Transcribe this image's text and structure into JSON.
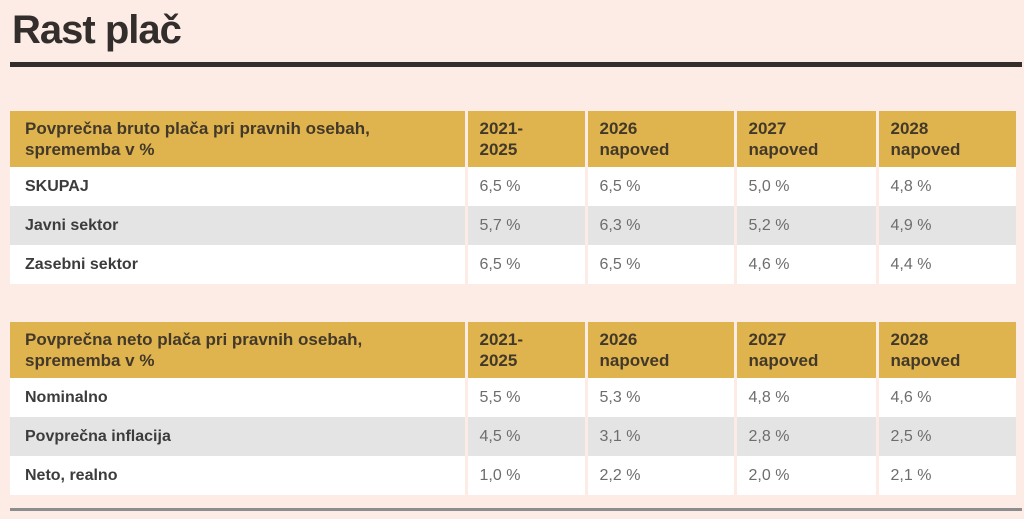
{
  "page": {
    "title": "Rast plač",
    "background_color": "#fcece5",
    "accent_gold": "#dfb44e",
    "row_stripe_gray": "#e4e4e4",
    "title_color": "#332e2c",
    "value_text_color": "#6d6d6d",
    "label_text_color": "#3c3c3c",
    "bottom_rule_color": "#8d8d8d"
  },
  "tables": [
    {
      "title": "Povprečna bruto plača pri pravnih osebah, sprememba v %",
      "columns": [
        "2021-\n2025",
        "2026\nnapoved",
        "2027\nnapoved",
        "2028\nnapoved"
      ],
      "rows": [
        {
          "label": "SKUPAJ",
          "values": [
            "6,5 %",
            "6,5 %",
            "5,0 %",
            "4,8 %"
          ]
        },
        {
          "label": "Javni sektor",
          "values": [
            "5,7 %",
            "6,3 %",
            "5,2 %",
            "4,9 %"
          ]
        },
        {
          "label": "Zasebni sektor",
          "values": [
            "6,5 %",
            "6,5 %",
            "4,6 %",
            "4,4 %"
          ]
        }
      ]
    },
    {
      "title": "Povprečna neto plača pri pravnih osebah, sprememba v %",
      "columns": [
        "2021-\n2025",
        "2026\nnapoved",
        "2027\nnapoved",
        "2028\nnapoved"
      ],
      "rows": [
        {
          "label": "Nominalno",
          "values": [
            "5,5 %",
            "5,3 %",
            "4,8 %",
            "4,6 %"
          ]
        },
        {
          "label": "Povprečna inflacija",
          "values": [
            "4,5 %",
            "3,1 %",
            "2,8 %",
            "2,5 %"
          ]
        },
        {
          "label": "Neto, realno",
          "values": [
            "1,0 %",
            "2,2 %",
            "2,0 %",
            "2,1 %"
          ]
        }
      ]
    }
  ],
  "chart_data": [
    {
      "type": "table",
      "title": "Povprečna bruto plača pri pravnih osebah, sprememba v %",
      "columns": [
        "2021-2025",
        "2026 napoved",
        "2027 napoved",
        "2028 napoved"
      ],
      "unit": "%",
      "rows": [
        {
          "label": "SKUPAJ",
          "values": [
            6.5,
            6.5,
            5.0,
            4.8
          ]
        },
        {
          "label": "Javni sektor",
          "values": [
            5.7,
            6.3,
            5.2,
            4.9
          ]
        },
        {
          "label": "Zasebni sektor",
          "values": [
            6.5,
            6.5,
            4.6,
            4.4
          ]
        }
      ]
    },
    {
      "type": "table",
      "title": "Povprečna neto plača pri pravnih osebah, sprememba v %",
      "columns": [
        "2021-2025",
        "2026 napoved",
        "2027 napoved",
        "2028 napoved"
      ],
      "unit": "%",
      "rows": [
        {
          "label": "Nominalno",
          "values": [
            5.5,
            5.3,
            4.8,
            4.6
          ]
        },
        {
          "label": "Povprečna inflacija",
          "values": [
            4.5,
            3.1,
            2.8,
            2.5
          ]
        },
        {
          "label": "Neto, realno",
          "values": [
            1.0,
            2.2,
            2.0,
            2.1
          ]
        }
      ]
    }
  ]
}
